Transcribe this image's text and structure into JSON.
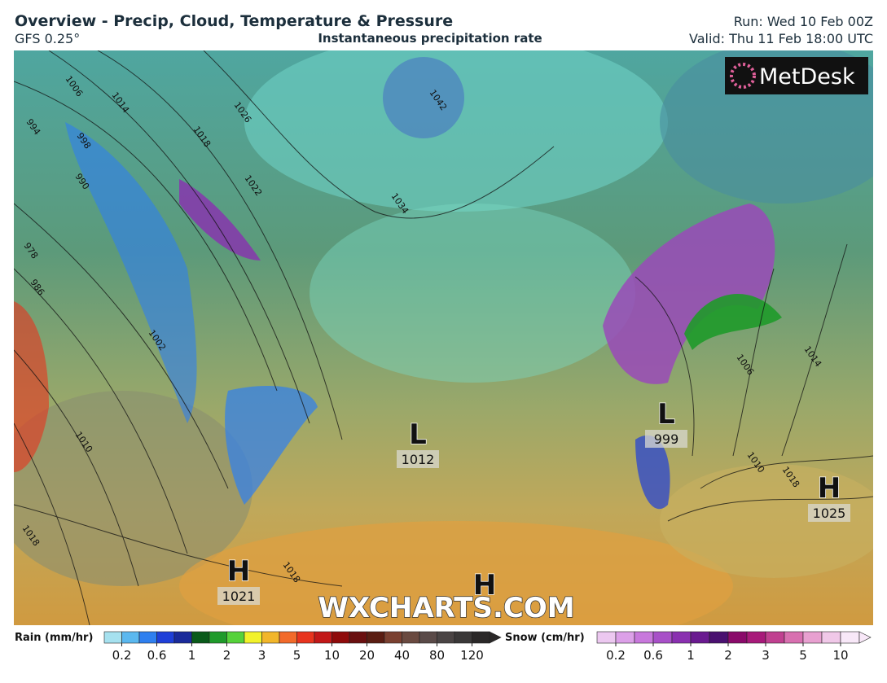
{
  "header": {
    "title": "Overview - Precip, Cloud, Temperature & Pressure",
    "model": "GFS 0.25°",
    "subtitle": "Instantaneous precipitation rate",
    "run": "Run: Wed 10 Feb 00Z",
    "valid": "Valid: Thu 11 Feb 18:00 UTC"
  },
  "logo": "MetDesk",
  "watermark": "WXCHARTS.COM",
  "pressure_centers": [
    {
      "letter": "L",
      "value": 1012
    },
    {
      "letter": "L",
      "value": 999
    },
    {
      "letter": "H",
      "value": 1025
    },
    {
      "letter": "H",
      "value": 1021
    },
    {
      "letter": "H"
    }
  ],
  "isobar_labels": [
    1006,
    1014,
    1026,
    994,
    998,
    990,
    1018,
    1022,
    1034,
    1042,
    978,
    986,
    1002,
    1010,
    1018,
    1018,
    1006,
    1014,
    1010,
    1018
  ],
  "legends": [
    {
      "title": "Rain (mm/hr)",
      "ticks": [
        0.2,
        0.6,
        1,
        2,
        3,
        5,
        10,
        20,
        40,
        80,
        120
      ],
      "colors": [
        "#a6e1ef",
        "#5bb8ef",
        "#2f7fef",
        "#1f3fd8",
        "#1a2a9a",
        "#0a5a1a",
        "#1f9a2a",
        "#55d23a",
        "#f2f22a",
        "#f2b62a",
        "#f26a2a",
        "#e8341e",
        "#c21818",
        "#8f0a0a",
        "#6a0f0f",
        "#5a1d12",
        "#7a4030",
        "#6a4a40",
        "#5a4a48",
        "#4a4444",
        "#3a3838",
        "#2a2828"
      ]
    },
    {
      "title": "Snow (cm/hr)",
      "ticks": [
        0.2,
        0.6,
        1,
        2,
        3,
        5,
        10
      ],
      "colors": [
        "#ecc8f0",
        "#dca0e8",
        "#c878dc",
        "#a850c8",
        "#8a30b0",
        "#6a1a90",
        "#4a1070",
        "#8a0a6a",
        "#a81a7a",
        "#c04090",
        "#d870b0",
        "#e8a0d0",
        "#f0c8e8",
        "#f8e8f8"
      ]
    }
  ]
}
